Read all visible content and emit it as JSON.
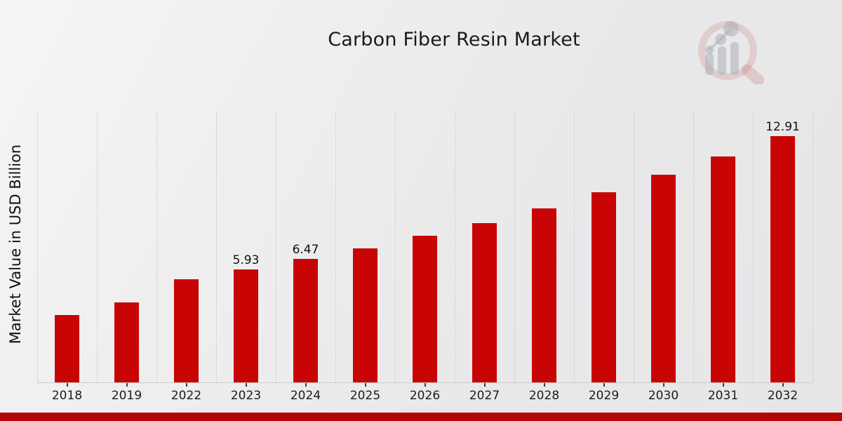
{
  "page": {
    "title": "Carbon Fiber Resin Market",
    "ylabel": "Market Value in USD Billion"
  },
  "chart_data": {
    "type": "bar",
    "title": "Carbon Fiber Resin Market",
    "xlabel": "",
    "ylabel": "Market Value in USD Billion",
    "categories": [
      "2018",
      "2019",
      "2022",
      "2023",
      "2024",
      "2025",
      "2026",
      "2027",
      "2028",
      "2029",
      "2030",
      "2031",
      "2032"
    ],
    "values": [
      3.54,
      4.2,
      5.41,
      5.93,
      6.47,
      7.05,
      7.68,
      8.37,
      9.13,
      9.97,
      10.89,
      11.85,
      12.91
    ],
    "data_labels": {
      "2023": "5.93",
      "2024": "6.47",
      "2032": "12.91"
    },
    "bar_color": "#c80404",
    "footer_strip_color": "#b20606",
    "ylim": [
      0,
      14.25
    ],
    "grid": "vertical-dotted",
    "legend": "none"
  }
}
